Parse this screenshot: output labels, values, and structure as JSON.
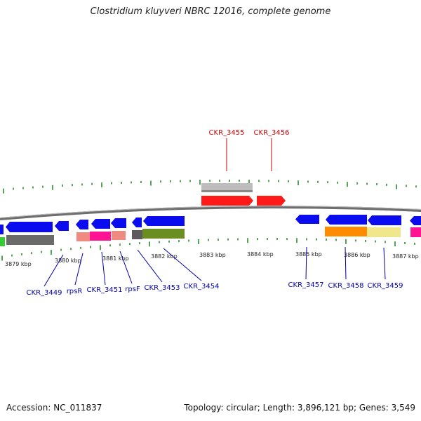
{
  "title": "Clostridium kluyveri NBRC 12016, complete genome",
  "footer": {
    "accession": "Accession: NC_011837",
    "stats": "Topology: circular; Length: 3,896,121 bp; Genes: 3,549"
  },
  "colors": {
    "forward_cds": "#ff0000",
    "reverse_cds": "#0000ff",
    "tick": "#2e8b2e",
    "backbone": "#777777",
    "label_forward": "#cc0000",
    "label_reverse": "#0000aa"
  },
  "kbp_labels": [
    "3879 kbp",
    "3880 kbp",
    "3881 kbp",
    "3882 kbp",
    "3883 kbp",
    "3884 kbp",
    "3885 kbp",
    "3886 kbp",
    "3887 kbp"
  ],
  "forward_genes": [
    "CKR_3455",
    "CKR_3456"
  ],
  "reverse_genes": [
    "CKR_3449",
    "rpsR",
    "CKR_3451",
    "rpsF",
    "CKR_3453",
    "CKR_3454",
    "CKR_3457",
    "CKR_3458",
    "CKR_3459"
  ]
}
